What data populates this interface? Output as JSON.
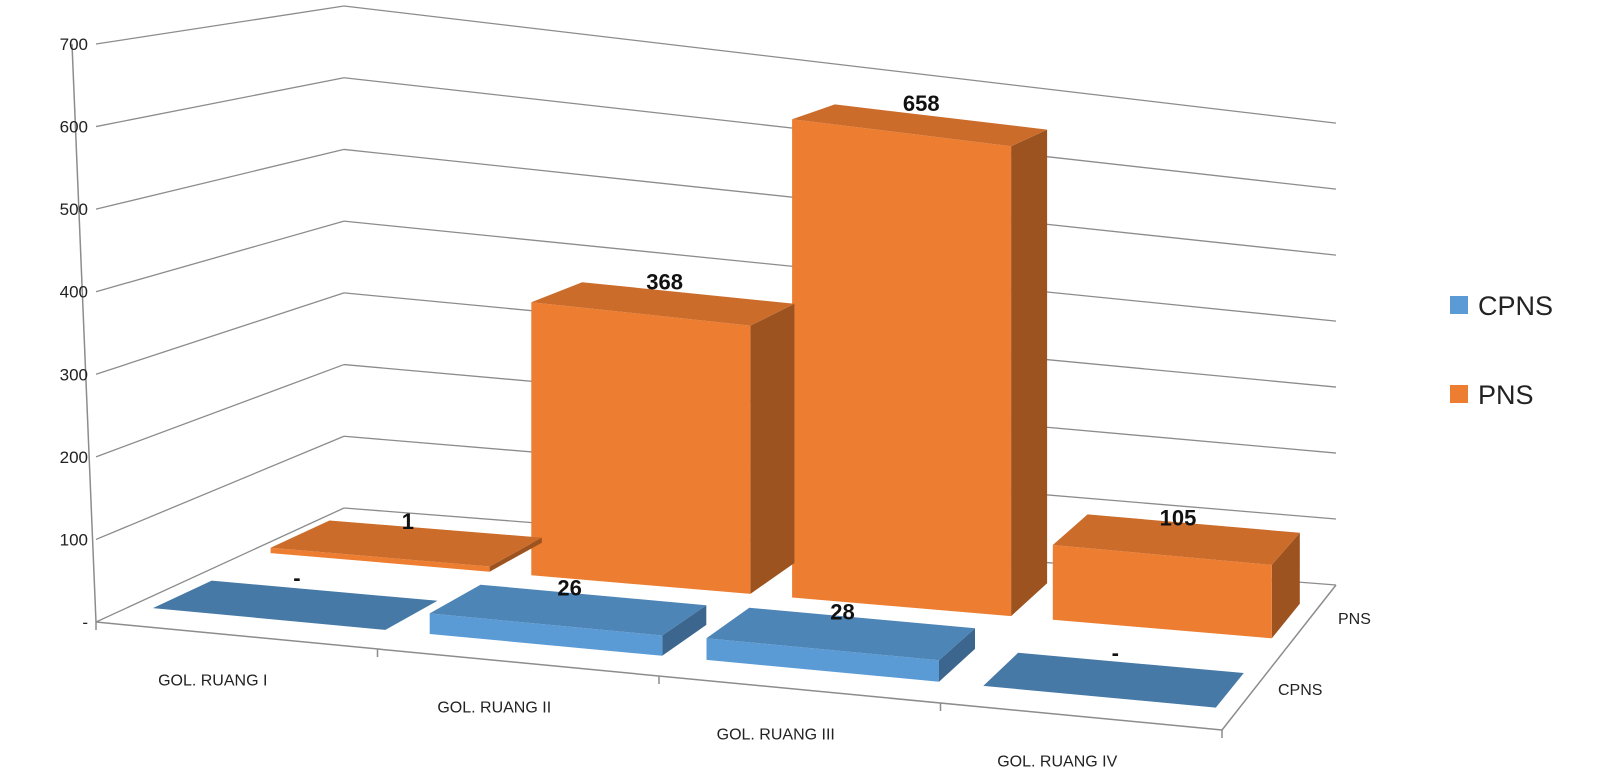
{
  "chart_data": {
    "type": "bar",
    "variant": "3d-column",
    "categories": [
      "GOL. RUANG I",
      "GOL. RUANG II",
      "GOL. RUANG III",
      "GOL. RUANG IV"
    ],
    "series": [
      {
        "name": "CPNS",
        "values": [
          0,
          26,
          28,
          0
        ],
        "labels": [
          "-",
          "26",
          "28",
          "-"
        ],
        "color": "#5b9bd5"
      },
      {
        "name": "PNS",
        "values": [
          1,
          368,
          658,
          105
        ],
        "labels": [
          "1",
          "368",
          "658",
          "105"
        ],
        "color": "#ed7d31"
      }
    ],
    "y_ticks": [
      "-",
      "100",
      "200",
      "300",
      "400",
      "500",
      "600",
      "700"
    ],
    "ylim": [
      0,
      700
    ],
    "series_axis_labels": [
      "PNS",
      "CPNS"
    ],
    "legend": {
      "position": "right",
      "entries": [
        "CPNS",
        "PNS"
      ]
    },
    "grid": true,
    "title": "",
    "xlabel": "",
    "ylabel": ""
  }
}
